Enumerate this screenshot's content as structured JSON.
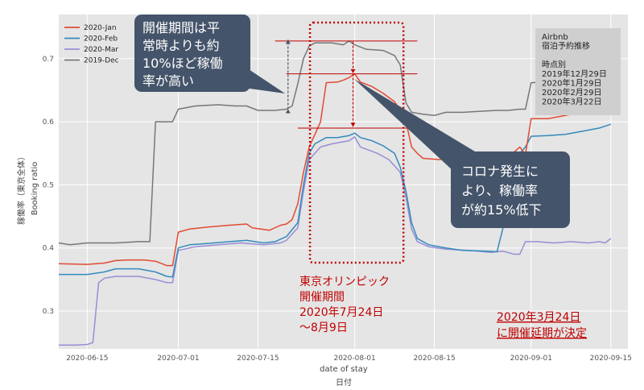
{
  "chart_data": {
    "type": "line",
    "xlabel": "date of stay",
    "xlabel_ja": "日付",
    "ylabel": "Booking ratio",
    "ylabel_ja": "稼働率（東京全体）",
    "ylim": [
      0.24,
      0.77
    ],
    "yticks": [
      0.3,
      0.4,
      0.5,
      0.6,
      0.7
    ],
    "xticks": [
      "2020-06-15",
      "2020-07-01",
      "2020-07-15",
      "2020-08-01",
      "2020-08-15",
      "2020-09-01",
      "2020-09-15"
    ],
    "grid": true,
    "legend": "top-left",
    "series": [
      {
        "name": "2020-Jan",
        "color": "#e24a33",
        "points": [
          [
            "2020-06-10",
            0.375
          ],
          [
            "2020-06-15",
            0.374
          ],
          [
            "2020-06-18",
            0.376
          ],
          [
            "2020-06-20",
            0.38
          ],
          [
            "2020-06-22",
            0.381
          ],
          [
            "2020-06-25",
            0.381
          ],
          [
            "2020-06-27",
            0.379
          ],
          [
            "2020-06-29",
            0.372
          ],
          [
            "2020-06-30",
            0.372
          ],
          [
            "2020-07-01",
            0.425
          ],
          [
            "2020-07-03",
            0.43
          ],
          [
            "2020-07-06",
            0.433
          ],
          [
            "2020-07-10",
            0.436
          ],
          [
            "2020-07-13",
            0.438
          ],
          [
            "2020-07-14",
            0.432
          ],
          [
            "2020-07-17",
            0.428
          ],
          [
            "2020-07-19",
            0.436
          ],
          [
            "2020-07-20",
            0.438
          ],
          [
            "2020-07-21",
            0.445
          ],
          [
            "2020-07-22",
            0.47
          ],
          [
            "2020-07-23",
            0.52
          ],
          [
            "2020-07-24",
            0.56
          ],
          [
            "2020-07-25",
            0.58
          ],
          [
            "2020-07-26",
            0.6
          ],
          [
            "2020-07-27",
            0.662
          ],
          [
            "2020-07-29",
            0.663
          ],
          [
            "2020-07-30",
            0.666
          ],
          [
            "2020-07-31",
            0.67
          ],
          [
            "2020-08-01",
            0.676
          ],
          [
            "2020-08-02",
            0.663
          ],
          [
            "2020-08-04",
            0.656
          ],
          [
            "2020-08-06",
            0.645
          ],
          [
            "2020-08-08",
            0.632
          ],
          [
            "2020-08-09",
            0.618
          ],
          [
            "2020-08-10",
            0.6
          ],
          [
            "2020-08-11",
            0.56
          ],
          [
            "2020-08-12",
            0.55
          ],
          [
            "2020-08-13",
            0.542
          ],
          [
            "2020-08-16",
            0.54
          ],
          [
            "2020-08-18",
            0.548
          ],
          [
            "2020-08-22",
            0.548
          ],
          [
            "2020-08-26",
            0.552
          ],
          [
            "2020-08-29",
            0.552
          ],
          [
            "2020-08-30",
            0.56
          ],
          [
            "2020-08-31",
            0.548
          ],
          [
            "2020-09-01",
            0.605
          ],
          [
            "2020-09-04",
            0.605
          ],
          [
            "2020-09-07",
            0.61
          ],
          [
            "2020-09-10",
            0.615
          ],
          [
            "2020-09-13",
            0.618
          ],
          [
            "2020-09-15",
            0.62
          ]
        ]
      },
      {
        "name": "2020-Feb",
        "color": "#348abd",
        "points": [
          [
            "2020-06-10",
            0.358
          ],
          [
            "2020-06-15",
            0.358
          ],
          [
            "2020-06-18",
            0.362
          ],
          [
            "2020-06-20",
            0.367
          ],
          [
            "2020-06-24",
            0.367
          ],
          [
            "2020-06-27",
            0.362
          ],
          [
            "2020-06-29",
            0.355
          ],
          [
            "2020-06-30",
            0.354
          ],
          [
            "2020-07-01",
            0.4
          ],
          [
            "2020-07-03",
            0.405
          ],
          [
            "2020-07-06",
            0.407
          ],
          [
            "2020-07-10",
            0.41
          ],
          [
            "2020-07-13",
            0.412
          ],
          [
            "2020-07-16",
            0.408
          ],
          [
            "2020-07-18",
            0.41
          ],
          [
            "2020-07-20",
            0.418
          ],
          [
            "2020-07-22",
            0.44
          ],
          [
            "2020-07-23",
            0.5
          ],
          [
            "2020-07-24",
            0.55
          ],
          [
            "2020-07-25",
            0.565
          ],
          [
            "2020-07-27",
            0.575
          ],
          [
            "2020-07-29",
            0.575
          ],
          [
            "2020-07-31",
            0.578
          ],
          [
            "2020-08-01",
            0.582
          ],
          [
            "2020-08-02",
            0.575
          ],
          [
            "2020-08-04",
            0.57
          ],
          [
            "2020-08-06",
            0.562
          ],
          [
            "2020-08-08",
            0.55
          ],
          [
            "2020-08-09",
            0.528
          ],
          [
            "2020-08-10",
            0.49
          ],
          [
            "2020-08-11",
            0.44
          ],
          [
            "2020-08-12",
            0.415
          ],
          [
            "2020-08-14",
            0.405
          ],
          [
            "2020-08-17",
            0.4
          ],
          [
            "2020-08-20",
            0.396
          ],
          [
            "2020-08-24",
            0.395
          ],
          [
            "2020-08-26",
            0.394
          ],
          [
            "2020-08-27",
            0.43
          ],
          [
            "2020-08-28",
            0.52
          ],
          [
            "2020-08-30",
            0.55
          ],
          [
            "2020-08-31",
            0.56
          ],
          [
            "2020-09-01",
            0.577
          ],
          [
            "2020-09-04",
            0.578
          ],
          [
            "2020-09-07",
            0.58
          ],
          [
            "2020-09-10",
            0.585
          ],
          [
            "2020-09-13",
            0.59
          ],
          [
            "2020-09-15",
            0.596
          ]
        ]
      },
      {
        "name": "2020-Mar",
        "color": "#988ed5",
        "points": [
          [
            "2020-06-10",
            0.246
          ],
          [
            "2020-06-13",
            0.246
          ],
          [
            "2020-06-15",
            0.247
          ],
          [
            "2020-06-16",
            0.25
          ],
          [
            "2020-06-17",
            0.345
          ],
          [
            "2020-06-18",
            0.352
          ],
          [
            "2020-06-20",
            0.355
          ],
          [
            "2020-06-24",
            0.355
          ],
          [
            "2020-06-27",
            0.35
          ],
          [
            "2020-06-29",
            0.345
          ],
          [
            "2020-06-30",
            0.345
          ],
          [
            "2020-07-01",
            0.396
          ],
          [
            "2020-07-04",
            0.402
          ],
          [
            "2020-07-08",
            0.405
          ],
          [
            "2020-07-12",
            0.408
          ],
          [
            "2020-07-16",
            0.405
          ],
          [
            "2020-07-19",
            0.408
          ],
          [
            "2020-07-20",
            0.412
          ],
          [
            "2020-07-22",
            0.432
          ],
          [
            "2020-07-23",
            0.49
          ],
          [
            "2020-07-24",
            0.54
          ],
          [
            "2020-07-26",
            0.56
          ],
          [
            "2020-07-28",
            0.565
          ],
          [
            "2020-07-31",
            0.57
          ],
          [
            "2020-08-01",
            0.576
          ],
          [
            "2020-08-02",
            0.56
          ],
          [
            "2020-08-05",
            0.55
          ],
          [
            "2020-08-07",
            0.54
          ],
          [
            "2020-08-09",
            0.52
          ],
          [
            "2020-08-10",
            0.48
          ],
          [
            "2020-08-11",
            0.43
          ],
          [
            "2020-08-12",
            0.41
          ],
          [
            "2020-08-14",
            0.402
          ],
          [
            "2020-08-17",
            0.398
          ],
          [
            "2020-08-21",
            0.396
          ],
          [
            "2020-08-25",
            0.393
          ],
          [
            "2020-08-27",
            0.395
          ],
          [
            "2020-08-29",
            0.39
          ],
          [
            "2020-08-30",
            0.39
          ],
          [
            "2020-08-31",
            0.41
          ],
          [
            "2020-09-02",
            0.41
          ],
          [
            "2020-09-05",
            0.408
          ],
          [
            "2020-09-08",
            0.41
          ],
          [
            "2020-09-11",
            0.408
          ],
          [
            "2020-09-13",
            0.41
          ],
          [
            "2020-09-14",
            0.408
          ],
          [
            "2020-09-15",
            0.415
          ]
        ]
      },
      {
        "name": "2019-Dec",
        "color": "#777777",
        "points": [
          [
            "2020-06-10",
            0.408
          ],
          [
            "2020-06-12",
            0.405
          ],
          [
            "2020-06-15",
            0.408
          ],
          [
            "2020-06-20",
            0.408
          ],
          [
            "2020-06-24",
            0.41
          ],
          [
            "2020-06-26",
            0.41
          ],
          [
            "2020-06-27",
            0.6
          ],
          [
            "2020-06-29",
            0.6
          ],
          [
            "2020-06-30",
            0.6
          ],
          [
            "2020-07-01",
            0.62
          ],
          [
            "2020-07-04",
            0.625
          ],
          [
            "2020-07-08",
            0.627
          ],
          [
            "2020-07-11",
            0.625
          ],
          [
            "2020-07-13",
            0.625
          ],
          [
            "2020-07-15",
            0.618
          ],
          [
            "2020-07-18",
            0.618
          ],
          [
            "2020-07-20",
            0.62
          ],
          [
            "2020-07-21",
            0.625
          ],
          [
            "2020-07-22",
            0.66
          ],
          [
            "2020-07-23",
            0.7
          ],
          [
            "2020-07-24",
            0.72
          ],
          [
            "2020-07-25",
            0.725
          ],
          [
            "2020-07-28",
            0.725
          ],
          [
            "2020-07-30",
            0.722
          ],
          [
            "2020-07-31",
            0.728
          ],
          [
            "2020-08-01",
            0.722
          ],
          [
            "2020-08-03",
            0.715
          ],
          [
            "2020-08-06",
            0.713
          ],
          [
            "2020-08-08",
            0.705
          ],
          [
            "2020-08-09",
            0.69
          ],
          [
            "2020-08-10",
            0.63
          ],
          [
            "2020-08-11",
            0.615
          ],
          [
            "2020-08-13",
            0.612
          ],
          [
            "2020-08-15",
            0.61
          ],
          [
            "2020-08-17",
            0.615
          ],
          [
            "2020-08-20",
            0.615
          ],
          [
            "2020-08-24",
            0.617
          ],
          [
            "2020-08-26",
            0.618
          ],
          [
            "2020-08-28",
            0.618
          ],
          [
            "2020-08-30",
            0.62
          ],
          [
            "2020-08-31",
            0.62
          ],
          [
            "2020-09-01",
            0.662
          ],
          [
            "2020-09-04",
            0.663
          ],
          [
            "2020-09-07",
            0.668
          ],
          [
            "2020-09-10",
            0.67
          ],
          [
            "2020-09-13",
            0.673
          ],
          [
            "2020-09-15",
            0.675
          ]
        ]
      }
    ],
    "annotations": {
      "callout_top_lines": [
        "開催期間は平",
        "常時よりも約",
        "10%ほど稼働",
        "率が高い"
      ],
      "callout_bottom_lines": [
        "コロナ発生に",
        "より、稼働率",
        "が約15%低下"
      ],
      "olympics_lines": [
        "東京オリンピック",
        "開催期間",
        "2020年7月24日",
        "～8月9日"
      ],
      "postpone_lines": [
        "2020年3月24日",
        "に開催延期が決定"
      ],
      "info_lines": [
        "Airbnb",
        "宿泊予約推移",
        "",
        "時点別",
        "2019年12月29日",
        "2020年1月29日",
        "2020年2月29日",
        "2020年3月22日"
      ],
      "olympics_range": [
        "2020-07-24",
        "2020-08-09"
      ]
    }
  }
}
